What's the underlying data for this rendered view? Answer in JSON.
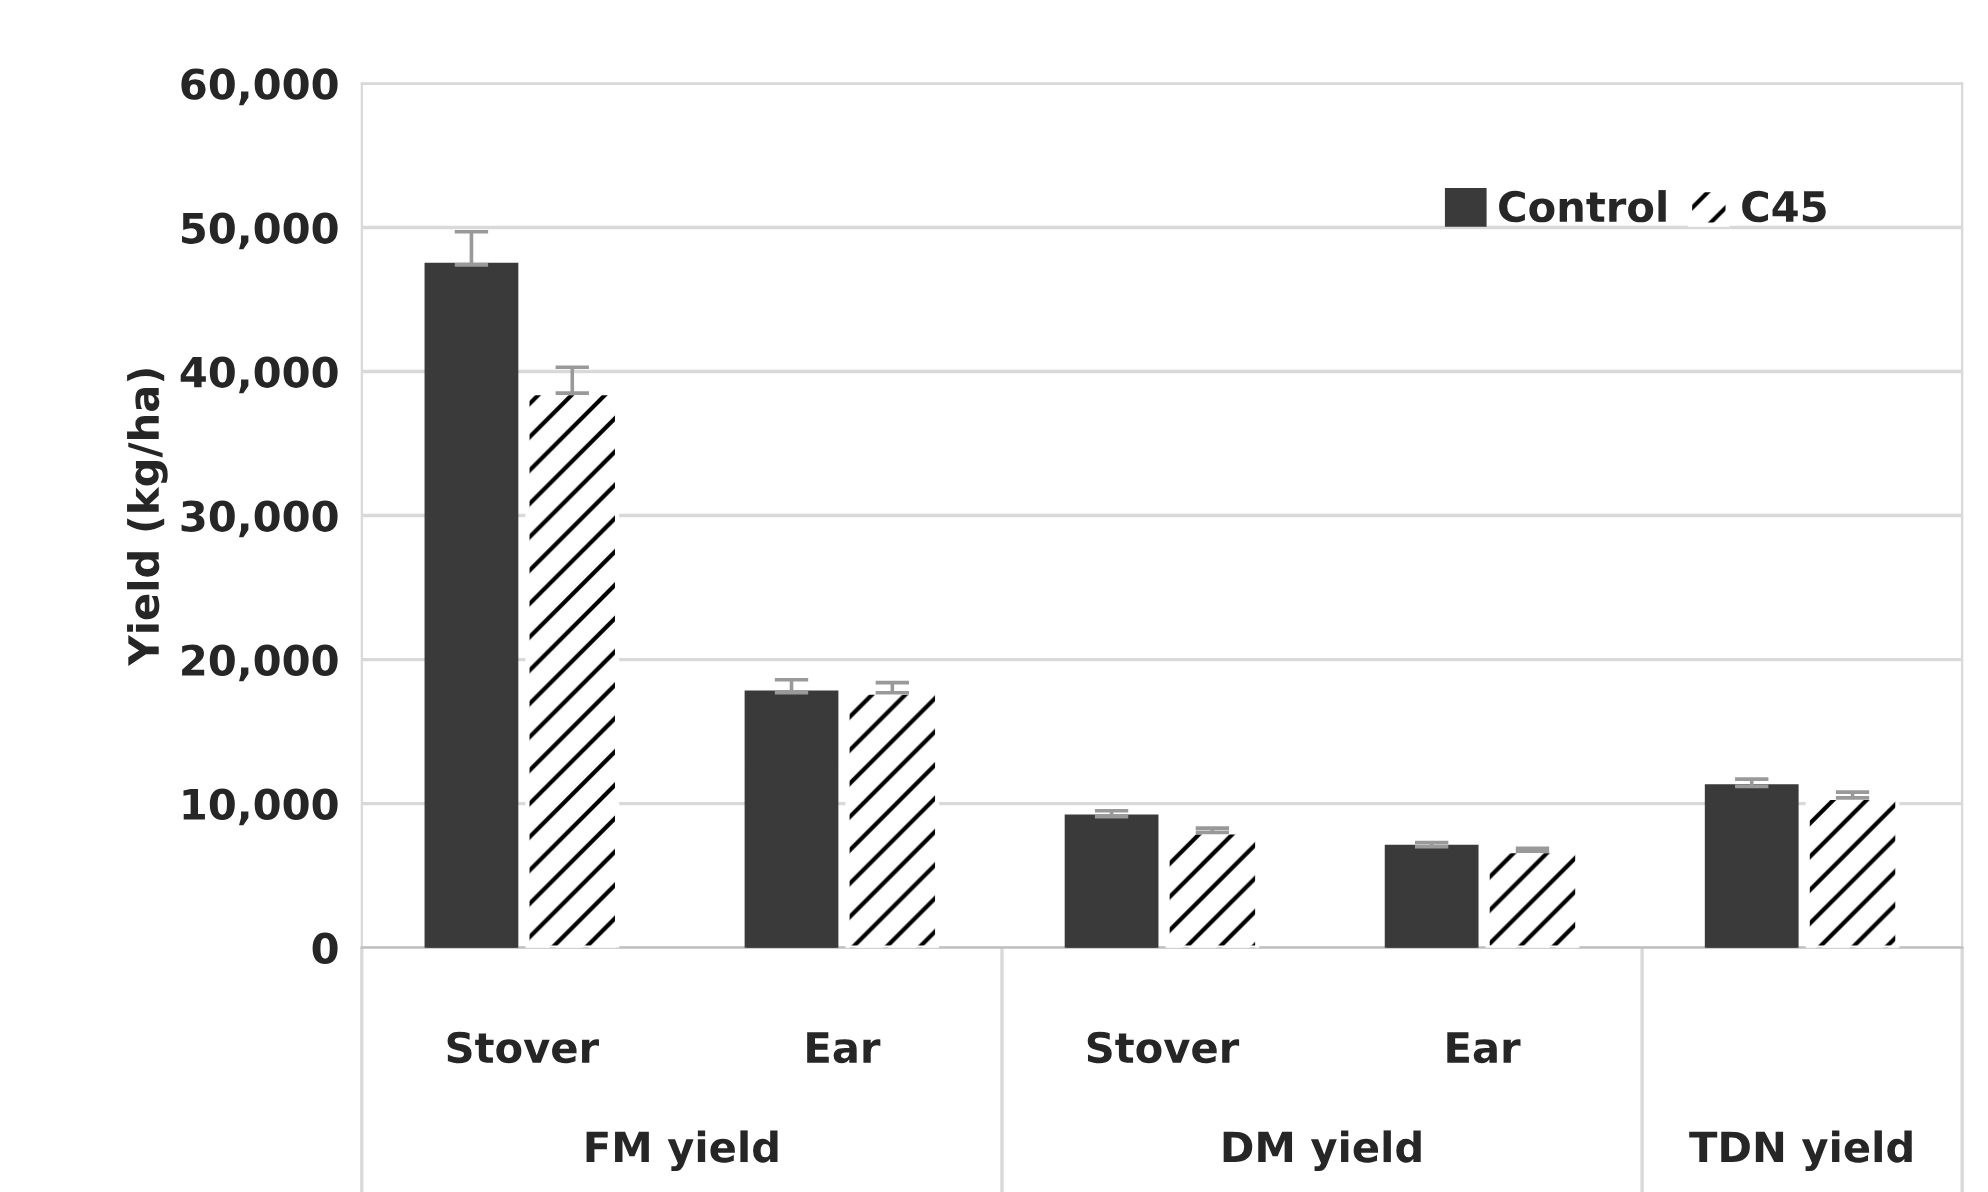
{
  "chart_data": {
    "type": "bar",
    "ylabel": "Yield (kg/ha)",
    "categories": [
      "Stover",
      "Ear",
      "Stover",
      "Ear",
      null
    ],
    "series": [
      {
        "name": "Control",
        "color": "#3a3a3a",
        "values": [
          47400,
          17700,
          9100,
          7000,
          11200
        ],
        "errors": [
          2300,
          900,
          400,
          300,
          500
        ]
      },
      {
        "name": "C45",
        "color": "#ffffff",
        "values": [
          38500,
          17700,
          8000,
          6700,
          10400
        ],
        "errors": [
          1800,
          700,
          300,
          200,
          400
        ]
      }
    ],
    "annotations": [
      "FM yield",
      "DM yield",
      "TDN yield"
    ],
    "ylim": [
      0,
      60000
    ],
    "yticks": [
      {
        "value": 0,
        "label": "0"
      },
      {
        "value": 10000,
        "label": "10,000"
      },
      {
        "value": 20000,
        "label": "20,000"
      },
      {
        "value": 30000,
        "label": "30,000"
      },
      {
        "value": 40000,
        "label": "40,000"
      },
      {
        "value": 50000,
        "label": "50,000"
      },
      {
        "value": 60000,
        "label": "60,000"
      }
    ],
    "grid": "y",
    "legend": "top right"
  }
}
